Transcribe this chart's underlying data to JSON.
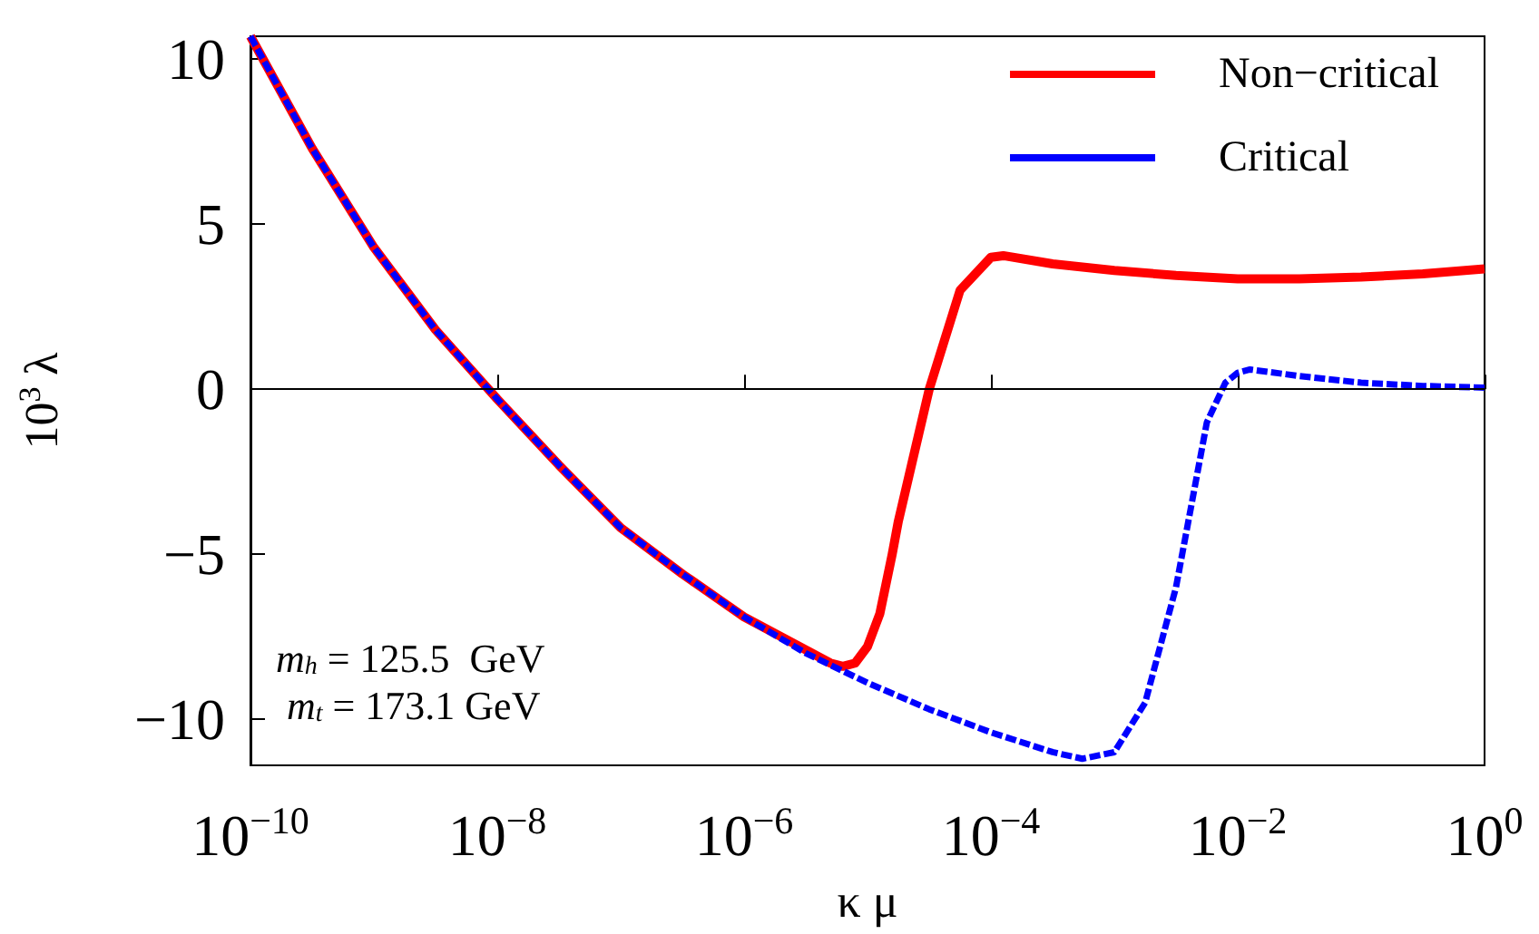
{
  "chart_data": {
    "type": "line",
    "xlabel": "κ μ",
    "ylabel": "10$^{3}$ λ",
    "log": "x",
    "xlim": [
      1e-10,
      1
    ],
    "ylim": [
      -11.4,
      10.7
    ],
    "xticks": [
      {
        "value": 1e-10,
        "label": "10$^{−10}$"
      },
      {
        "value": 1e-08,
        "label": "10$^{−8}$"
      },
      {
        "value": 1e-06,
        "label": "10$^{−6}$"
      },
      {
        "value": 0.0001,
        "label": "10$^{−4}$"
      },
      {
        "value": 0.01,
        "label": "10$^{−2}$"
      },
      {
        "value": 1,
        "label": "10$^{0}$"
      }
    ],
    "yticks": [
      {
        "value": -10,
        "label": "−10"
      },
      {
        "value": -5,
        "label": "−5"
      },
      0,
      5,
      10
    ],
    "grid": false,
    "legend": "top right",
    "marker": "none",
    "series": [
      {
        "name": "Non−critical",
        "color": "#ff0000",
        "line_style": "solid",
        "x": [
          1e-10,
          3.162e-10,
          1e-09,
          3.162e-09,
          1e-08,
          3.162e-08,
          1e-07,
          3.162e-07,
          1e-06,
          3.162e-06,
          5.01e-06,
          6.31e-06,
          7.94e-06,
          1e-05,
          1.259e-05,
          1.585e-05,
          1.778e-05,
          3.162e-05,
          5.623e-05,
          0.0001,
          0.0001259,
          0.0003162,
          0.001,
          0.003162,
          0.01,
          0.03162,
          0.1,
          0.3162,
          1
        ],
        "values": [
          10.7,
          7.3,
          4.3,
          1.8,
          -0.3,
          -2.3,
          -4.2,
          -5.6,
          -6.9,
          -7.9,
          -8.3,
          -8.4,
          -8.3,
          -7.8,
          -6.8,
          -5.0,
          -4.0,
          0,
          3.0,
          4.0,
          4.05,
          3.8,
          3.6,
          3.45,
          3.35,
          3.35,
          3.4,
          3.5,
          3.65
        ]
      },
      {
        "name": "Critical",
        "color": "#0000ff",
        "line_style": "dashed",
        "x": [
          1e-10,
          3.162e-10,
          1e-09,
          3.162e-09,
          1e-08,
          3.162e-08,
          1e-07,
          3.162e-07,
          1e-06,
          3.162e-06,
          1e-05,
          3.162e-05,
          0.0001,
          0.0003162,
          0.00055,
          0.001,
          0.001778,
          0.003162,
          0.005012,
          0.005623,
          0.007943,
          0.01,
          0.01259,
          0.03162,
          0.1,
          0.3162,
          1
        ],
        "values": [
          10.7,
          7.3,
          4.3,
          1.8,
          -0.3,
          -2.3,
          -4.2,
          -5.6,
          -6.9,
          -8.0,
          -8.9,
          -9.7,
          -10.4,
          -11.0,
          -11.2,
          -11.0,
          -9.5,
          -6.0,
          -2.0,
          -1.0,
          0.2,
          0.5,
          0.6,
          0.4,
          0.2,
          0.1,
          0.05
        ]
      }
    ],
    "ref_lines": [
      {
        "axis": "y",
        "value": 0,
        "color": "#000000"
      }
    ],
    "annotations": [
      "m$_{h}$ = 125.5  GeV",
      "m$_{t}$ = 173.1 GeV"
    ]
  }
}
